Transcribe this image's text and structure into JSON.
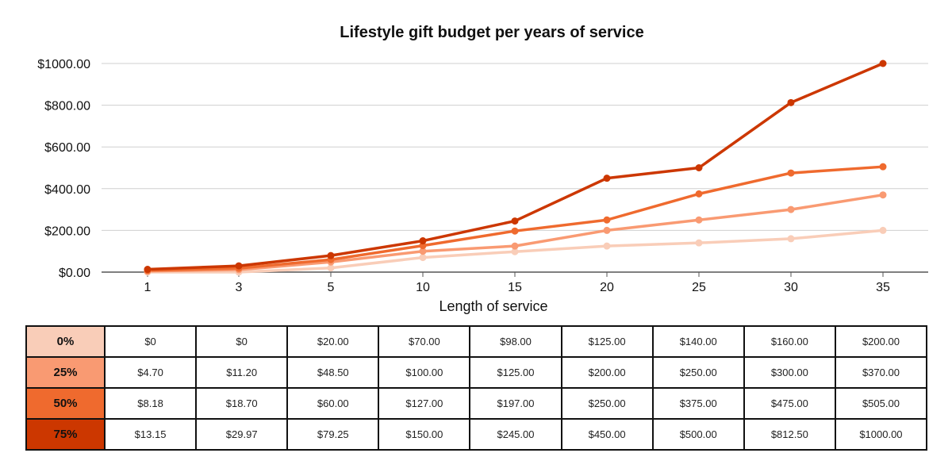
{
  "chart_data": {
    "type": "line",
    "title": "Lifestyle gift budget per years of service",
    "xlabel": "Length of service",
    "ylabel": "",
    "categories": [
      "1",
      "3",
      "5",
      "10",
      "15",
      "20",
      "25",
      "30",
      "35"
    ],
    "y_ticks": [
      "$0.00",
      "$200.00",
      "$400.00",
      "$600.00",
      "$800.00",
      "$1000.00"
    ],
    "ylim": [
      0,
      1000
    ],
    "grid": true,
    "legend": "none",
    "series": [
      {
        "name": "0%",
        "color": "#f9cdb8",
        "values": [
          0,
          0,
          20,
          70,
          98,
          125,
          140,
          160,
          200
        ],
        "labels": [
          "$0",
          "$0",
          "$20.00",
          "$70.00",
          "$98.00",
          "$125.00",
          "$140.00",
          "$160.00",
          "$200.00"
        ]
      },
      {
        "name": "25%",
        "color": "#f99a72",
        "values": [
          4.7,
          11.2,
          48.5,
          100,
          125,
          200,
          250,
          300,
          370
        ],
        "labels": [
          "$4.70",
          "$11.20",
          "$48.50",
          "$100.00",
          "$125.00",
          "$200.00",
          "$250.00",
          "$300.00",
          "$370.00"
        ]
      },
      {
        "name": "50%",
        "color": "#ef6a2e",
        "values": [
          8.18,
          18.7,
          60,
          127,
          197,
          250,
          375,
          475,
          505
        ],
        "labels": [
          "$8.18",
          "$18.70",
          "$60.00",
          "$127.00",
          "$197.00",
          "$250.00",
          "$375.00",
          "$475.00",
          "$505.00"
        ]
      },
      {
        "name": "75%",
        "color": "#cc3700",
        "values": [
          13.15,
          29.97,
          79.25,
          150,
          245,
          450,
          500,
          812.5,
          1000
        ],
        "labels": [
          "$13.15",
          "$29.97",
          "$79.25",
          "$150.00",
          "$245.00",
          "$450.00",
          "$500.00",
          "$812.50",
          "$1000.00"
        ]
      }
    ]
  }
}
